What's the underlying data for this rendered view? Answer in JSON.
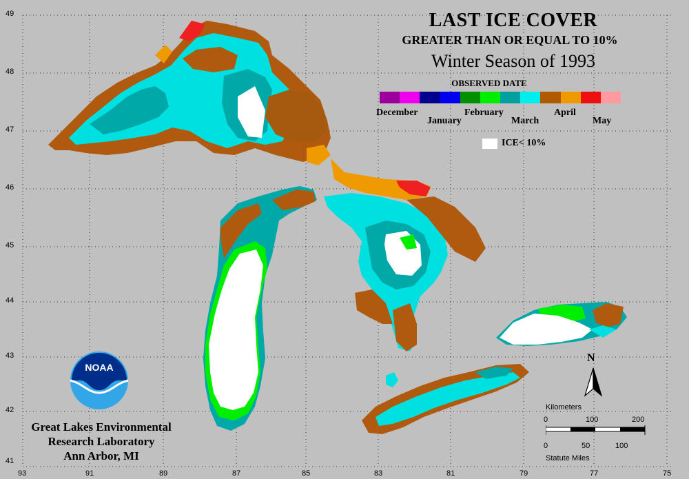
{
  "title": {
    "line1": "LAST ICE COVER",
    "line2": "GREATER THAN OR EQUAL TO 10%",
    "line3": "Winter Season of 1993"
  },
  "legend": {
    "heading": "OBSERVED DATE",
    "months": [
      "December",
      "January",
      "February",
      "March",
      "April",
      "May"
    ],
    "colors": [
      "#9b009b",
      "#ee00ee",
      "#000090",
      "#0000ee",
      "#009000",
      "#00ee00",
      "#00a0a0",
      "#00eeee",
      "#b05a00",
      "#ee9a00",
      "#ee1010",
      "#ff9aa0"
    ],
    "ice_label": "ICE< 10%"
  },
  "axes": {
    "latitudes": [
      "49",
      "48",
      "47",
      "46",
      "45",
      "44",
      "43",
      "42",
      "41"
    ],
    "longitudes": [
      "93",
      "91",
      "89",
      "87",
      "85",
      "83",
      "81",
      "79",
      "77",
      "75"
    ]
  },
  "organization": {
    "logo_text": "NOAA",
    "line1": "Great Lakes Environmental",
    "line2": "Research Laboratory",
    "line3": "Ann Arbor, MI"
  },
  "scale": {
    "km_title": "Kilometers",
    "km_ticks": [
      "0",
      "100",
      "200"
    ],
    "mi_ticks": [
      "0",
      "50",
      "100"
    ],
    "mi_title": "Statute Miles"
  },
  "north_label": "N"
}
